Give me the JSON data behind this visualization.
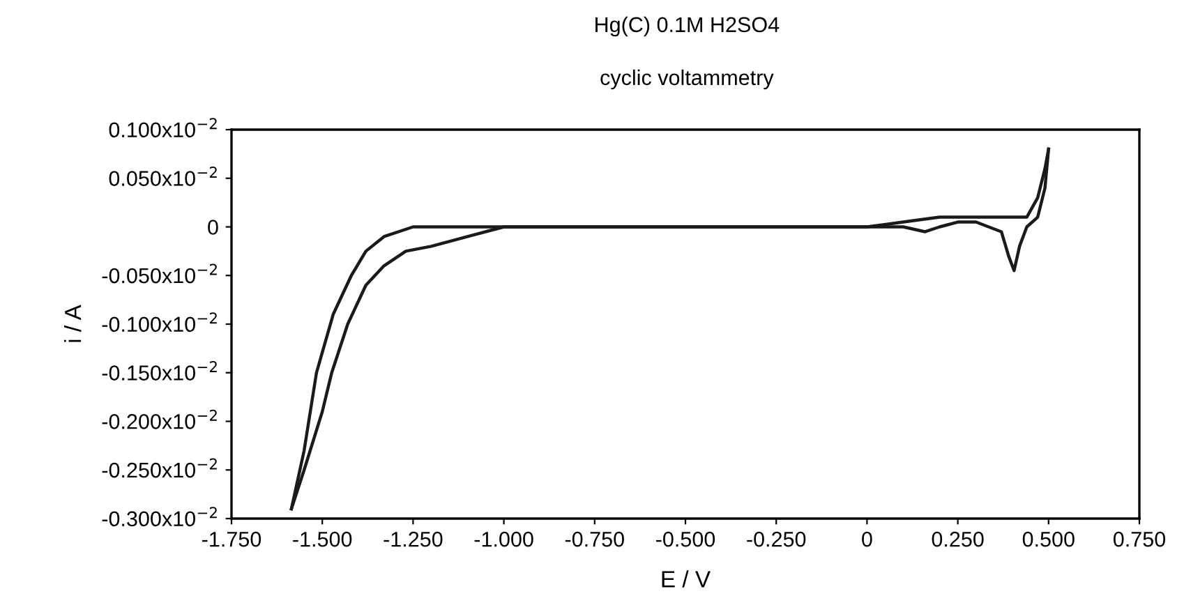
{
  "chart_data": {
    "type": "line",
    "title": "Hg(C) 0.1M H2SO4",
    "subtitle": "cyclic voltammetry",
    "xlabel": "E / V",
    "ylabel": "i / A",
    "series": [
      {
        "color": "#1a1a1a",
        "x": [
          -1.585,
          -1.55,
          -1.516,
          -1.47,
          -1.42,
          -1.38,
          -1.33,
          -1.25,
          -1.1,
          -0.5,
          0,
          0.1,
          0.2,
          0.25,
          0.35,
          0.44,
          0.47,
          0.49,
          0.5
        ],
        "values": [
          -0.0029,
          -0.0023,
          -0.0015,
          -0.0009,
          -0.0005,
          -0.00025,
          -0.0001,
          0,
          0,
          0,
          0,
          5e-05,
          0.0001,
          0.0001,
          0.0001,
          0.0001,
          0.0003,
          0.0006,
          0.0008
        ]
      },
      {
        "color": "#1a1a1a",
        "x": [
          0.5,
          0.49,
          0.47,
          0.44,
          0.42,
          0.405,
          0.39,
          0.37,
          0.3,
          0.25,
          0.2,
          0.16,
          0.1,
          0,
          -0.5,
          -1.0,
          -1.1,
          -1.2,
          -1.27,
          -1.33,
          -1.38,
          -1.43,
          -1.474,
          -1.5,
          -1.55,
          -1.585
        ],
        "values": [
          0.0008,
          0.0004,
          0.0001,
          0,
          -0.0002,
          -0.00045,
          -0.0003,
          -5e-05,
          5e-05,
          5e-05,
          0,
          -5e-05,
          0,
          0,
          0,
          0,
          -0.0001,
          -0.0002,
          -0.00025,
          -0.0004,
          -0.0006,
          -0.001,
          -0.0015,
          -0.0019,
          -0.0025,
          -0.0029
        ]
      }
    ],
    "xlim": [
      -1.75,
      0.75
    ],
    "xticks": [
      {
        "value": -1.75,
        "label": "-1.750"
      },
      {
        "value": -1.5,
        "label": "-1.500"
      },
      {
        "value": -1.25,
        "label": "-1.250"
      },
      {
        "value": -1.0,
        "label": "-1.000"
      },
      {
        "value": -0.75,
        "label": "-0.750"
      },
      {
        "value": -0.5,
        "label": "-0.500"
      },
      {
        "value": -0.25,
        "label": "-0.250"
      },
      0,
      {
        "value": 0.25,
        "label": "0.250"
      },
      {
        "value": 0.5,
        "label": "0.500"
      },
      {
        "value": 0.75,
        "label": "0.750"
      }
    ],
    "ylim": [
      -0.003,
      0.001
    ],
    "yticks": [
      {
        "value": 0.001,
        "label": "0.100x10$^{−2}$"
      },
      {
        "value": 0.0005,
        "label": "0.050x10$^{−2}$"
      },
      0,
      {
        "value": -0.0005,
        "label": "-0.050x10$^{−2}$"
      },
      {
        "value": -0.001,
        "label": "-0.100x10$^{−2}$"
      },
      {
        "value": -0.0015,
        "label": "-0.150x10$^{−2}$"
      },
      {
        "value": -0.002,
        "label": "-0.200x10$^{−2}$"
      },
      {
        "value": -0.0025,
        "label": "-0.250x10$^{−2}$"
      },
      {
        "value": -0.003,
        "label": "-0.300x10$^{−2}$"
      }
    ],
    "grid": false,
    "marker": "none",
    "line_style": "solid"
  }
}
